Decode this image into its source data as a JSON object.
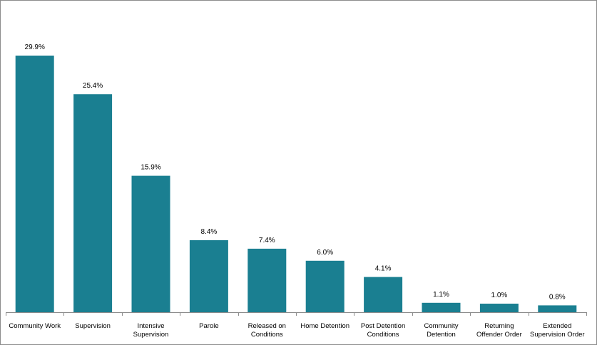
{
  "chart_data": {
    "type": "bar",
    "title": "",
    "xlabel": "",
    "ylabel": "",
    "categories": [
      [
        "Community Work"
      ],
      [
        "Supervision"
      ],
      [
        "Intensive",
        "Supervision"
      ],
      [
        "Parole"
      ],
      [
        "Released on",
        "Conditions"
      ],
      [
        "Home Detention"
      ],
      [
        "Post Detention",
        "Conditions"
      ],
      [
        "Community",
        "Detention"
      ],
      [
        "Returning",
        "Offender Order"
      ],
      [
        "Extended",
        "Supervision Order"
      ]
    ],
    "values": [
      29.9,
      25.4,
      15.9,
      8.4,
      7.4,
      6.0,
      4.1,
      1.1,
      1.0,
      0.8
    ],
    "value_labels": [
      "29.9%",
      "25.4%",
      "15.9%",
      "8.4%",
      "7.4%",
      "6.0%",
      "4.1%",
      "1.1%",
      "1.0%",
      "0.8%"
    ],
    "ylim": [
      0,
      29.9
    ],
    "grid": false,
    "legend": "none",
    "bar_color": "#1a7f91",
    "axis_color": "#8c8c8c"
  }
}
